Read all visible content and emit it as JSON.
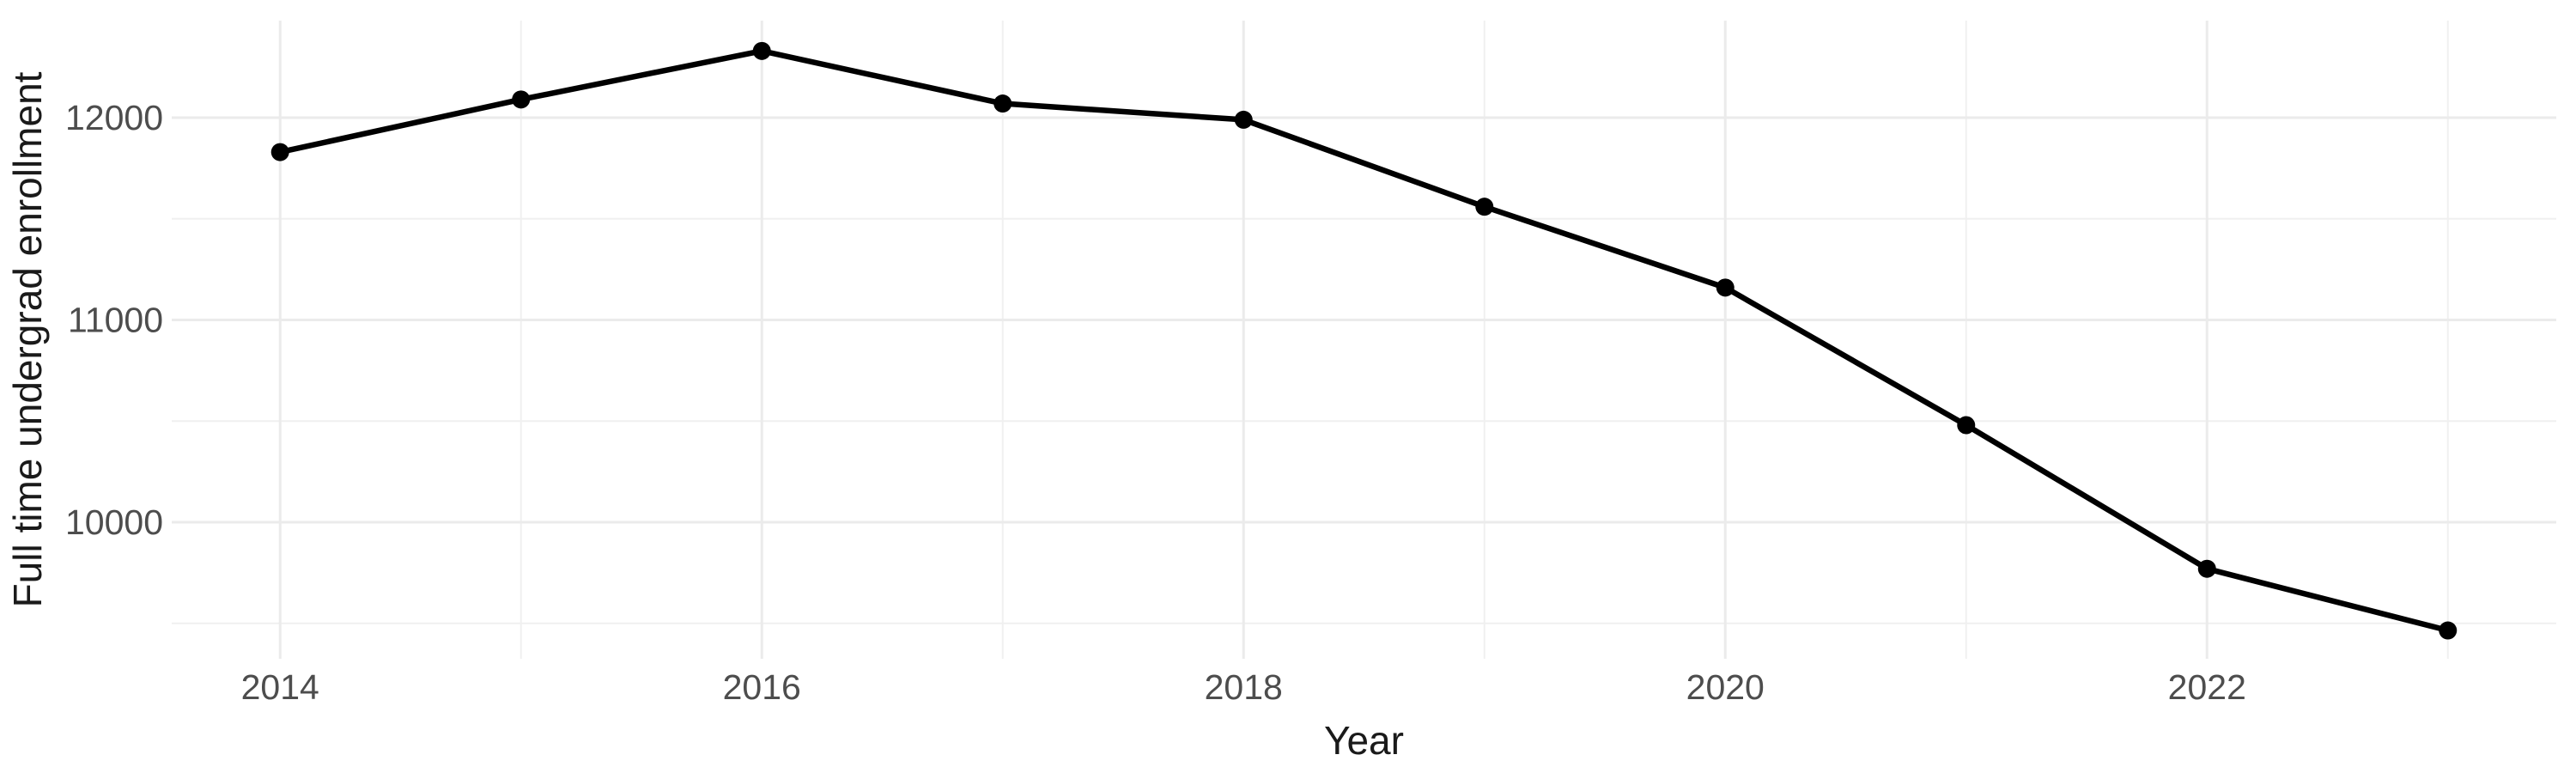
{
  "chart_data": {
    "type": "line",
    "title": "",
    "xlabel": "Year",
    "ylabel": "Full time undergrad enrollment",
    "x": [
      2014,
      2015,
      2016,
      2017,
      2018,
      2019,
      2020,
      2021,
      2022,
      2023
    ],
    "series": [
      {
        "name": "Full time undergrad enrollment",
        "values": [
          11830,
          12090,
          12330,
          12070,
          11990,
          11560,
          11160,
          10480,
          9770,
          9465
        ]
      }
    ],
    "x_tick_labels": [
      "2014",
      "2016",
      "2018",
      "2020",
      "2022"
    ],
    "x_tick_values": [
      2014,
      2016,
      2018,
      2020,
      2022
    ],
    "x_minor_values": [
      2015,
      2017,
      2019,
      2021,
      2023
    ],
    "y_tick_labels": [
      "10000",
      "11000",
      "12000"
    ],
    "y_tick_values": [
      10000,
      11000,
      12000
    ],
    "y_minor_values": [
      9500,
      10500,
      11500
    ],
    "xlim": [
      2013.55,
      2023.45
    ],
    "ylim": [
      9325,
      12480
    ],
    "grid": "on",
    "legend": "none",
    "colors": {
      "line": "#000000",
      "point": "#000000",
      "grid_major": "#ebebeb",
      "grid_minor": "#f0f0f0",
      "tick_text": "#4d4d4d",
      "axis_title_text": "#1a1a1a",
      "background": "#ffffff"
    }
  }
}
